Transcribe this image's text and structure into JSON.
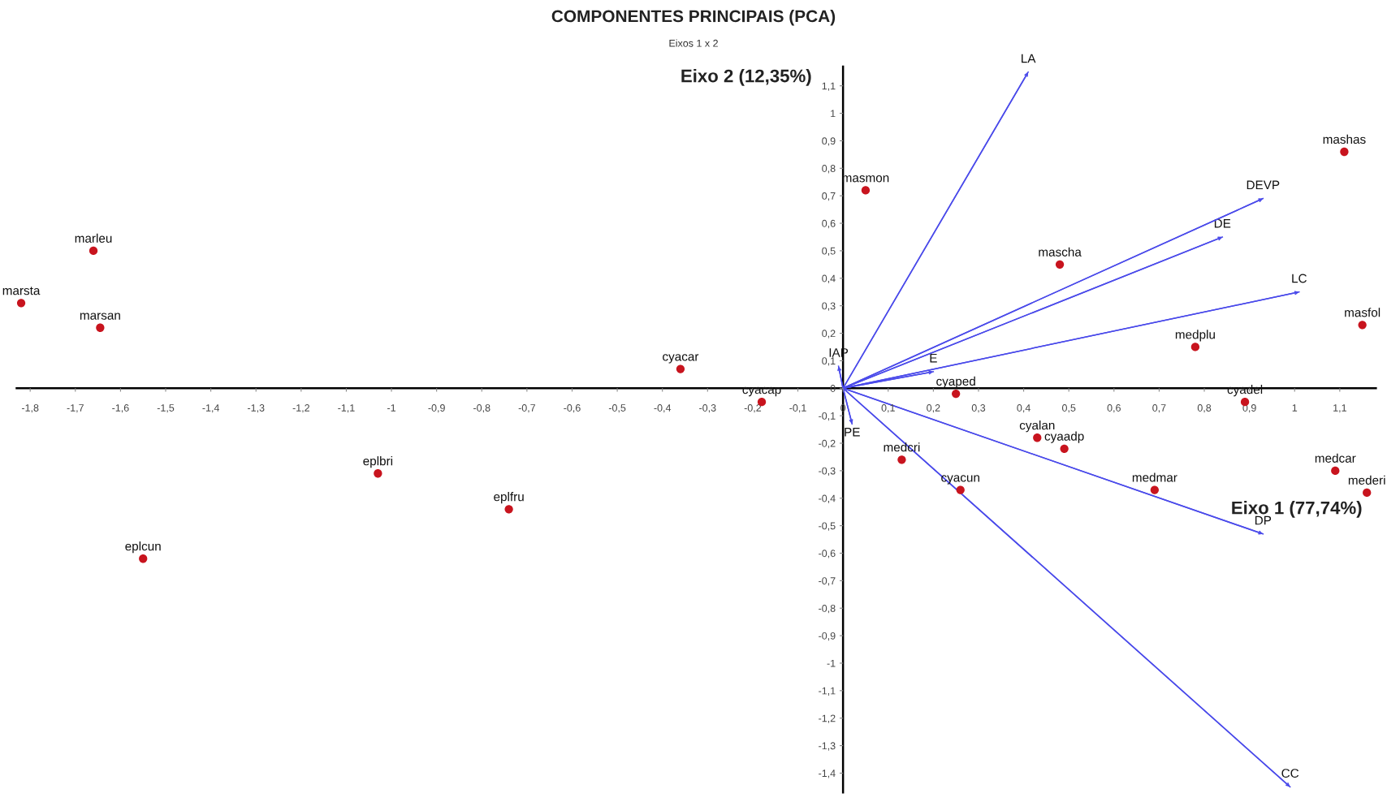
{
  "chart_data": {
    "type": "scatter",
    "title": "COMPONENTES PRINCIPAIS (PCA)",
    "subtitle": "Eixos 1 x 2",
    "xlabel": "Eixo 1 (77,74%)",
    "ylabel": "Eixo 2 (12,35%)",
    "xlim": [
      -1.83,
      1.18
    ],
    "ylim": [
      -1.47,
      1.17
    ],
    "xticks": [
      {
        "value": -1.8,
        "label": "-1,8"
      },
      {
        "value": -1.7,
        "label": "-1,7"
      },
      {
        "value": -1.6,
        "label": "-1,6"
      },
      {
        "value": -1.5,
        "label": "-1,5"
      },
      {
        "value": -1.4,
        "label": "-1,4"
      },
      {
        "value": -1.3,
        "label": "-1,3"
      },
      {
        "value": -1.2,
        "label": "-1,2"
      },
      {
        "value": -1.1,
        "label": "-1,1"
      },
      -1,
      {
        "value": -0.9,
        "label": "-0,9"
      },
      {
        "value": -0.8,
        "label": "-0,8"
      },
      {
        "value": -0.7,
        "label": "-0,7"
      },
      {
        "value": -0.6,
        "label": "-0,6"
      },
      {
        "value": -0.5,
        "label": "-0,5"
      },
      {
        "value": -0.4,
        "label": "-0,4"
      },
      {
        "value": -0.3,
        "label": "-0,3"
      },
      {
        "value": -0.2,
        "label": "-0,2"
      },
      {
        "value": -0.1,
        "label": "-0,1"
      },
      0,
      {
        "value": 0.1,
        "label": "0,1"
      },
      {
        "value": 0.2,
        "label": "0,2"
      },
      {
        "value": 0.3,
        "label": "0,3"
      },
      {
        "value": 0.4,
        "label": "0,4"
      },
      {
        "value": 0.5,
        "label": "0,5"
      },
      {
        "value": 0.6,
        "label": "0,6"
      },
      {
        "value": 0.7,
        "label": "0,7"
      },
      {
        "value": 0.8,
        "label": "0,8"
      },
      {
        "value": 0.9,
        "label": "0,9"
      },
      1,
      {
        "value": 1.1,
        "label": "1,1"
      }
    ],
    "yticks": [
      {
        "value": -1.4,
        "label": "-1,4"
      },
      {
        "value": -1.3,
        "label": "-1,3"
      },
      {
        "value": -1.2,
        "label": "-1,2"
      },
      {
        "value": -1.1,
        "label": "-1,1"
      },
      -1,
      {
        "value": -0.9,
        "label": "-0,9"
      },
      {
        "value": -0.8,
        "label": "-0,8"
      },
      {
        "value": -0.7,
        "label": "-0,7"
      },
      {
        "value": -0.6,
        "label": "-0,6"
      },
      {
        "value": -0.5,
        "label": "-0,5"
      },
      {
        "value": -0.4,
        "label": "-0,4"
      },
      {
        "value": -0.3,
        "label": "-0,3"
      },
      {
        "value": -0.2,
        "label": "-0,2"
      },
      {
        "value": -0.1,
        "label": "-0,1"
      },
      0,
      {
        "value": 0.1,
        "label": "0,1"
      },
      {
        "value": 0.2,
        "label": "0,2"
      },
      {
        "value": 0.3,
        "label": "0,3"
      },
      {
        "value": 0.4,
        "label": "0,4"
      },
      {
        "value": 0.5,
        "label": "0,5"
      },
      {
        "value": 0.6,
        "label": "0,6"
      },
      {
        "value": 0.7,
        "label": "0,7"
      },
      {
        "value": 0.8,
        "label": "0,8"
      },
      {
        "value": 0.9,
        "label": "0,9"
      },
      1,
      {
        "value": 1.1,
        "label": "1,1"
      }
    ],
    "grid": false,
    "legend": false,
    "series": [
      {
        "type": "scatter",
        "marker": "circle",
        "color": "#c8141e",
        "x": [
          -1.66,
          -1.82,
          -1.645,
          -1.03,
          -0.74,
          -1.55,
          -0.36,
          -0.18,
          0.05,
          0.48,
          1.11,
          1.15,
          0.78,
          0.25,
          0.89,
          0.43,
          0.49,
          0.13,
          0.26,
          0.69,
          1.09,
          1.16
        ],
        "values": [
          0.5,
          0.31,
          0.22,
          -0.31,
          -0.44,
          -0.62,
          0.07,
          -0.05,
          0.72,
          0.45,
          0.86,
          0.23,
          0.15,
          -0.02,
          -0.05,
          -0.18,
          -0.22,
          -0.26,
          -0.37,
          -0.37,
          -0.3,
          -0.38
        ]
      },
      {
        "type": "line",
        "name": "LA",
        "color": "#4b4bea",
        "x": [
          0,
          0.41
        ],
        "values": [
          0,
          1.15
        ]
      },
      {
        "type": "line",
        "name": "DEVP",
        "color": "#4b4bea",
        "x": [
          0,
          0.93
        ],
        "values": [
          0,
          0.69
        ]
      },
      {
        "type": "line",
        "name": "DE",
        "color": "#4b4bea",
        "x": [
          0,
          0.84
        ],
        "values": [
          0,
          0.55
        ]
      },
      {
        "type": "line",
        "name": "LC",
        "color": "#4b4bea",
        "x": [
          0,
          1.01
        ],
        "values": [
          0,
          0.35
        ]
      },
      {
        "type": "line",
        "name": "E",
        "color": "#4b4bea",
        "x": [
          0,
          0.2
        ],
        "values": [
          0,
          0.06
        ]
      },
      {
        "type": "line",
        "name": "IAP",
        "color": "#4b4bea",
        "x": [
          0,
          -0.01
        ],
        "values": [
          0,
          0.08
        ]
      },
      {
        "type": "line",
        "name": "PE",
        "color": "#4b4bea",
        "x": [
          0,
          0.02
        ],
        "values": [
          0,
          -0.13
        ]
      },
      {
        "type": "line",
        "name": "DP",
        "color": "#4b4bea",
        "x": [
          0,
          0.93
        ],
        "values": [
          0,
          -0.53
        ]
      },
      {
        "type": "line",
        "name": "CC",
        "color": "#4b4bea",
        "x": [
          0,
          0.99
        ],
        "values": [
          0,
          -1.45
        ]
      }
    ],
    "annotations": [
      {
        "text": "marleu",
        "x": -1.66,
        "y": 0.5
      },
      {
        "text": "marsta",
        "x": -1.82,
        "y": 0.31
      },
      {
        "text": "marsan",
        "x": -1.645,
        "y": 0.22
      },
      {
        "text": "eplbri",
        "x": -1.03,
        "y": -0.31
      },
      {
        "text": "eplfru",
        "x": -0.74,
        "y": -0.44
      },
      {
        "text": "eplcun",
        "x": -1.55,
        "y": -0.62
      },
      {
        "text": "cyacar",
        "x": -0.36,
        "y": 0.07
      },
      {
        "text": "cyacap",
        "x": -0.18,
        "y": -0.05
      },
      {
        "text": "masmon",
        "x": 0.05,
        "y": 0.72
      },
      {
        "text": "mascha",
        "x": 0.48,
        "y": 0.45
      },
      {
        "text": "mashas",
        "x": 1.11,
        "y": 0.86
      },
      {
        "text": "masfol",
        "x": 1.15,
        "y": 0.23
      },
      {
        "text": "medplu",
        "x": 0.78,
        "y": 0.15
      },
      {
        "text": "cyaped",
        "x": 0.25,
        "y": -0.02
      },
      {
        "text": "cyadel",
        "x": 0.89,
        "y": -0.05
      },
      {
        "text": "cyalan",
        "x": 0.43,
        "y": -0.18
      },
      {
        "text": "cyaadp",
        "x": 0.49,
        "y": -0.22
      },
      {
        "text": "medcri",
        "x": 0.13,
        "y": -0.26
      },
      {
        "text": "cyacun",
        "x": 0.26,
        "y": -0.37
      },
      {
        "text": "medmar",
        "x": 0.69,
        "y": -0.37
      },
      {
        "text": "medcar",
        "x": 1.09,
        "y": -0.3
      },
      {
        "text": "mederi",
        "x": 1.16,
        "y": -0.38
      }
    ]
  }
}
